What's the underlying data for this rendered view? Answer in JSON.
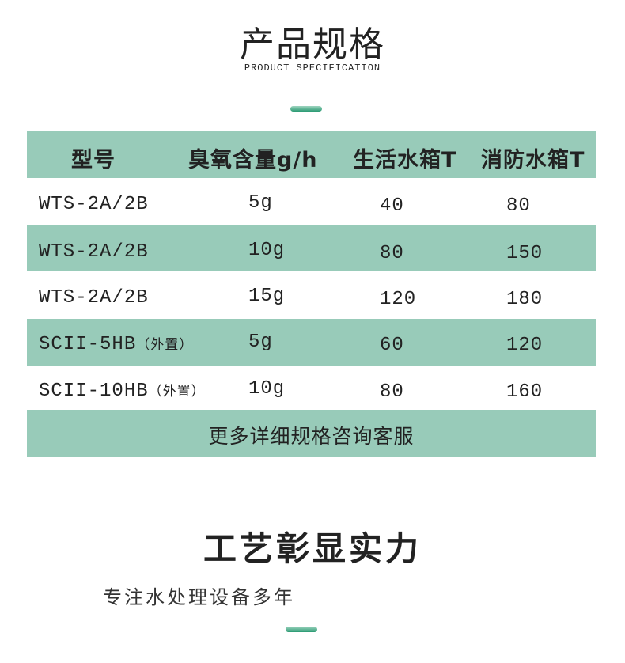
{
  "section1": {
    "title": "产品规格",
    "subtitle": "PRODUCT SPECIFICATION"
  },
  "table": {
    "headers": [
      "型号",
      "臭氧含量g/h",
      "生活水箱T",
      "消防水箱T"
    ],
    "rows": [
      {
        "model": "WTS-2A/2B",
        "note": "",
        "ozone": "5g",
        "domestic": "40",
        "fire": "80"
      },
      {
        "model": "WTS-2A/2B",
        "note": "",
        "ozone": "10g",
        "domestic": "80",
        "fire": "150"
      },
      {
        "model": "WTS-2A/2B",
        "note": "",
        "ozone": "15g",
        "domestic": "120",
        "fire": "180"
      },
      {
        "model": "SCII-5HB",
        "note": "（外置）",
        "ozone": "5g",
        "domestic": "60",
        "fire": "120"
      },
      {
        "model": "SCII-10HB",
        "note": "（外置）",
        "ozone": "10g",
        "domestic": "80",
        "fire": "160"
      }
    ],
    "footer": "更多详细规格咨询客服"
  },
  "section2": {
    "title": "工艺彰显实力",
    "subtitle": "专注水处理设备多年"
  },
  "colors": {
    "accent": "#98cbb9",
    "divider": "#2a9a72"
  }
}
